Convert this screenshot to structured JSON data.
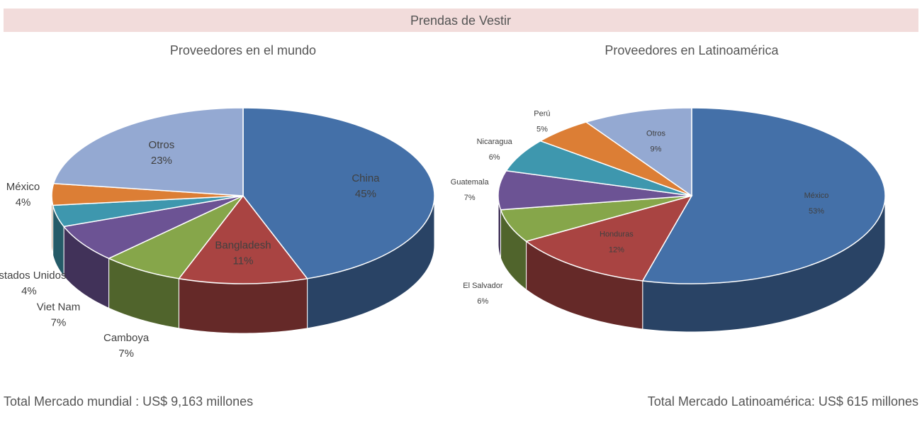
{
  "header": {
    "title": "Prendas de Vestir"
  },
  "chart_data": [
    {
      "type": "pie",
      "title": "Proveedores en el mundo",
      "categories": [
        "China",
        "Bangladesh",
        "Camboya",
        "Viet Nam",
        "Estados Unidos",
        "México",
        "Otros"
      ],
      "values": [
        45,
        11,
        7,
        7,
        4,
        4,
        23
      ],
      "value_labels": [
        "45%",
        "11%",
        "7%",
        "7%",
        "4%",
        "4%",
        "23%"
      ],
      "colors": [
        "#4470a8",
        "#a94442",
        "#86a64a",
        "#6c5394",
        "#3e97ae",
        "#dc7e35",
        "#94a9d2"
      ]
    },
    {
      "type": "pie",
      "title": "Proveedores en Latinoamérica",
      "categories": [
        "México",
        "Honduras",
        "El Salvador",
        "Guatemala",
        "Nicaragua",
        "Perú",
        "Otros"
      ],
      "values": [
        53,
        12,
        6,
        7,
        6,
        5,
        9
      ],
      "value_labels": [
        "53%",
        "12%",
        "6%",
        "7%",
        "6%",
        "5%",
        "9%"
      ],
      "colors": [
        "#4470a8",
        "#a94442",
        "#86a64a",
        "#6c5394",
        "#3e97ae",
        "#dc7e35",
        "#94a9d2"
      ]
    }
  ],
  "footer": [
    "Total Mercado mundial  : US$ 9,163 millones",
    "Total Mercado Latinoamérica: US$ 615 millones"
  ]
}
